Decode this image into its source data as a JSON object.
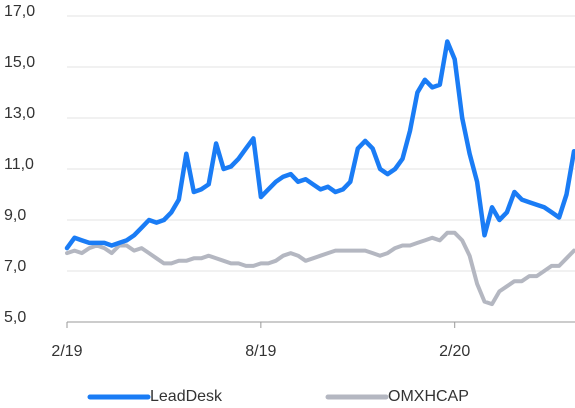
{
  "chart_data": {
    "type": "line",
    "categories": [
      "2/19",
      null,
      null,
      null,
      null,
      null,
      null,
      null,
      null,
      null,
      null,
      null,
      null,
      null,
      null,
      null,
      null,
      null,
      null,
      null,
      null,
      null,
      null,
      null,
      null,
      null,
      "8/19",
      null,
      null,
      null,
      null,
      null,
      null,
      null,
      null,
      null,
      null,
      null,
      null,
      null,
      null,
      null,
      null,
      null,
      null,
      null,
      null,
      null,
      null,
      null,
      null,
      null,
      "2/20",
      null,
      null,
      null,
      null,
      null,
      null,
      null,
      null,
      null,
      null,
      null,
      null,
      null,
      null,
      null,
      null
    ],
    "series": [
      {
        "name": "LeadDesk",
        "color": "#1a7cf5",
        "values": [
          7.9,
          8.3,
          8.2,
          8.1,
          8.1,
          8.1,
          8.0,
          8.1,
          8.2,
          8.4,
          8.7,
          9.0,
          8.9,
          9.0,
          9.3,
          9.8,
          11.6,
          10.1,
          10.2,
          10.4,
          12.0,
          11.0,
          11.1,
          11.4,
          11.8,
          12.2,
          9.9,
          10.2,
          10.5,
          10.7,
          10.8,
          10.5,
          10.6,
          10.4,
          10.2,
          10.3,
          10.1,
          10.2,
          10.5,
          11.8,
          12.1,
          11.8,
          11.0,
          10.8,
          11.0,
          11.4,
          12.5,
          14.0,
          14.5,
          14.2,
          14.3,
          16.0,
          15.3,
          13.0,
          11.6,
          10.5,
          8.4,
          9.5,
          9.0,
          9.3,
          10.1,
          9.8,
          9.7,
          9.6,
          9.5,
          9.3,
          9.1,
          10.0,
          11.7
        ]
      },
      {
        "name": "OMXHCAP",
        "color": "#b4b7c1",
        "values": [
          7.7,
          7.8,
          7.7,
          7.9,
          8.0,
          7.9,
          7.7,
          8.0,
          8.0,
          7.8,
          7.9,
          7.7,
          7.5,
          7.3,
          7.3,
          7.4,
          7.4,
          7.5,
          7.5,
          7.6,
          7.5,
          7.4,
          7.3,
          7.3,
          7.2,
          7.2,
          7.3,
          7.3,
          7.4,
          7.6,
          7.7,
          7.6,
          7.4,
          7.5,
          7.6,
          7.7,
          7.8,
          7.8,
          7.8,
          7.8,
          7.8,
          7.7,
          7.6,
          7.7,
          7.9,
          8.0,
          8.0,
          8.1,
          8.2,
          8.3,
          8.2,
          8.5,
          8.5,
          8.2,
          7.6,
          6.5,
          5.8,
          5.7,
          6.2,
          6.4,
          6.6,
          6.6,
          6.8,
          6.8,
          7.0,
          7.2,
          7.2,
          7.5,
          7.8
        ]
      }
    ],
    "ylim": [
      5,
      17
    ],
    "yticks": [
      {
        "value": 5,
        "label": "5,0"
      },
      {
        "value": 7,
        "label": "7,0"
      },
      {
        "value": 9,
        "label": "9,0"
      },
      {
        "value": 11,
        "label": "11,0"
      },
      {
        "value": 13,
        "label": "13,0"
      },
      {
        "value": 15,
        "label": "15,0"
      },
      {
        "value": 17,
        "label": "17,0"
      }
    ],
    "grid": true,
    "legend": "bottom"
  }
}
